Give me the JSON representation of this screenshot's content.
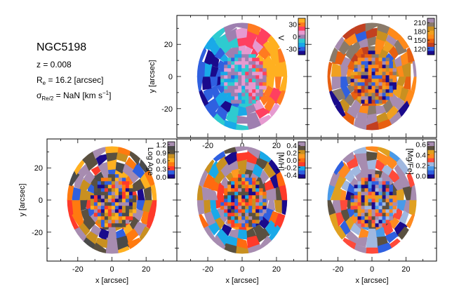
{
  "galaxy": {
    "name": "NGC5198",
    "redshift": "z = 0.008",
    "re_prefix": "R",
    "re_sub": "e",
    "re_suffix": " = 16.2 [arcsec]",
    "sigma_prefix": "σ",
    "sigma_sub": "Re/2",
    "sigma_suffix": " = NaN [km s",
    "sigma_sup": "−1",
    "sigma_close": "]"
  },
  "chart_data": [
    {
      "type": "heatmap",
      "id": "velocity",
      "colorbar_label": "V",
      "colorbar_ticks": [
        "30",
        "0",
        "-30"
      ],
      "colorbar_tick_values": [
        30,
        0,
        -30
      ],
      "colorbar_range": [
        -45,
        45
      ],
      "colormap": [
        "#1a0a8c",
        "#2f60e0",
        "#19a9e8",
        "#2ecbd0",
        "#9e7fb0",
        "#e69ad0",
        "#ff4060",
        "#ff7a20",
        "#ffb020"
      ],
      "xlim": [
        -38,
        38
      ],
      "ylim": [
        -38,
        38
      ],
      "xticks": [
        "-20",
        "0",
        "20"
      ],
      "yticks": [
        "20",
        "0",
        "-20"
      ],
      "xlabel": "",
      "ylabel": "y [arcsec]"
    },
    {
      "type": "heatmap",
      "id": "sigma",
      "colorbar_label": "σ",
      "colorbar_ticks": [
        "210",
        "180",
        "150",
        "120"
      ],
      "colorbar_tick_values": [
        210,
        180,
        150,
        120
      ],
      "colorbar_range": [
        100,
        225
      ],
      "colormap": [
        "#1a0a8c",
        "#2f60e0",
        "#c24020",
        "#e86010",
        "#ff8a1a",
        "#f0a020",
        "#c99020",
        "#8a7a6a",
        "#a78cb0"
      ],
      "xlim": [
        -38,
        38
      ],
      "ylim": [
        -38,
        38
      ],
      "xticks": [],
      "yticks": [],
      "xlabel": "",
      "ylabel": ""
    },
    {
      "type": "heatmap",
      "id": "log-age",
      "colorbar_label": "Log Age",
      "colorbar_ticks": [
        "1.2",
        "0.9",
        "0.6",
        "0.3",
        "0.0"
      ],
      "colorbar_tick_values": [
        1.2,
        0.9,
        0.6,
        0.3,
        0.0
      ],
      "colorbar_range": [
        -0.05,
        1.3
      ],
      "colormap": [
        "#1a0a8c",
        "#2f60e0",
        "#ff3a2a",
        "#ff7a10",
        "#ffb020",
        "#c99020",
        "#5a5040",
        "#4a4a4a",
        "#a78cb0"
      ],
      "xlim": [
        -38,
        38
      ],
      "ylim": [
        -38,
        38
      ],
      "xticks": [
        "-20",
        "0",
        "20"
      ],
      "yticks": [
        "20",
        "0",
        "-20"
      ],
      "xlabel": "x [arcsec]",
      "ylabel": "y [arcsec]"
    },
    {
      "type": "heatmap",
      "id": "metallicity",
      "colorbar_label": "[M/H]",
      "colorbar_ticks": [
        "0.4",
        "0.2",
        "0.0",
        "-0.2",
        "-0.4"
      ],
      "colorbar_tick_values": [
        0.4,
        0.2,
        0.0,
        -0.2,
        -0.4
      ],
      "colorbar_range": [
        -0.5,
        0.5
      ],
      "colormap": [
        "#1a0a8c",
        "#2f60e0",
        "#19a9e8",
        "#ff3a2a",
        "#ff6a10",
        "#ff9a20",
        "#c99020",
        "#5a5040",
        "#a78cb0"
      ],
      "xlim": [
        -38,
        38
      ],
      "ylim": [
        -38,
        38
      ],
      "xticks": [
        "-20",
        "0",
        "20"
      ],
      "yticks": [],
      "xlabel": "x [arcsec]",
      "ylabel": ""
    },
    {
      "type": "heatmap",
      "id": "alpha-fe",
      "colorbar_label": "[Mg/Fe]",
      "colorbar_ticks": [
        "0.6",
        "0.4",
        "0.2",
        "0.0"
      ],
      "colorbar_tick_values": [
        0.6,
        0.4,
        0.2,
        0.0
      ],
      "colorbar_range": [
        -0.05,
        0.65
      ],
      "colormap": [
        "#1a0a8c",
        "#2f60e0",
        "#4a9ae8",
        "#a0b8e0",
        "#ff4a3a",
        "#ff8a20",
        "#e0a020",
        "#5a5040",
        "#a78cb0"
      ],
      "xlim": [
        -38,
        38
      ],
      "ylim": [
        -38,
        38
      ],
      "xticks": [
        "-20",
        "0",
        "20"
      ],
      "yticks": [],
      "xlabel": "x [arcsec]",
      "ylabel": ""
    }
  ]
}
